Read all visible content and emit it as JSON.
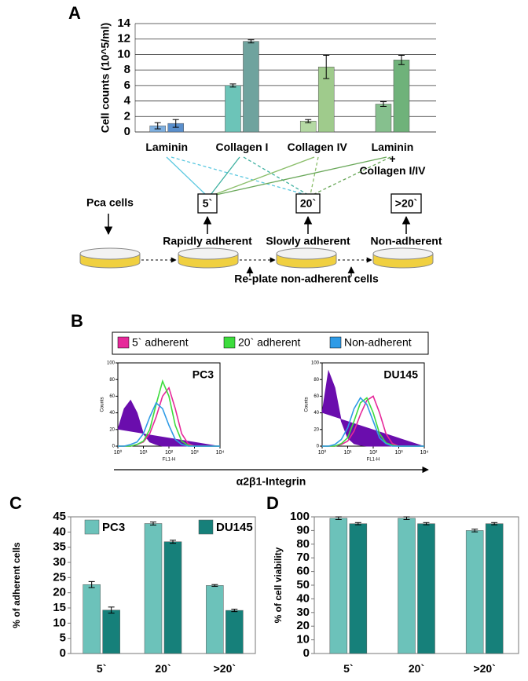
{
  "chart_data": [
    {
      "type": "bar",
      "panel": "A",
      "ylabel": "Cell counts (10^5/ml)",
      "categories": [
        "Laminin",
        "Collagen I",
        "Collagen IV",
        "Laminin\n+\nCollagen I/IV"
      ],
      "series": [
        {
          "values": [
            0.8,
            6.0,
            1.4,
            3.6
          ],
          "errors": [
            0.4,
            0.2,
            0.2,
            0.3
          ],
          "colors": [
            "#7fb0e0",
            "#6cc4b8",
            "#b5d9a4",
            "#86c08e"
          ]
        },
        {
          "values": [
            1.1,
            11.7,
            8.4,
            9.3
          ],
          "errors": [
            0.5,
            0.2,
            1.5,
            0.6
          ],
          "colors": [
            "#5a8fcc",
            "#6fa39e",
            "#9fcb8c",
            "#6fb27a"
          ]
        }
      ],
      "ylim": [
        0,
        14
      ],
      "yticks": [
        0,
        2,
        4,
        6,
        8,
        10,
        12,
        14
      ],
      "grid": true
    },
    {
      "type": "density",
      "panel": "B",
      "xlabel": "α2β1-Integrin",
      "legend": [
        {
          "name": "5` adherent",
          "color": "#e6299a"
        },
        {
          "name": "20` adherent",
          "color": "#3ddc3d"
        },
        {
          "name": "Non-adherent",
          "color": "#2f9be6"
        }
      ],
      "log_x": true,
      "x": [
        1,
        1.78,
        3.16,
        5.62,
        10,
        17.8,
        31.6,
        56.2,
        100,
        178,
        316,
        562,
        1000,
        1778,
        3162,
        5623,
        10000
      ],
      "xlim": [
        1,
        10000
      ],
      "xticks": [
        {
          "value": 1,
          "label": "10⁰"
        },
        {
          "value": 10,
          "label": "10¹"
        },
        {
          "value": 100,
          "label": "10²"
        },
        {
          "value": 1000,
          "label": "10³"
        },
        {
          "value": 10000,
          "label": "10⁴"
        }
      ],
      "ylim": [
        0,
        100
      ],
      "yticks": [
        0,
        20,
        40,
        60,
        80,
        100
      ],
      "plots": [
        {
          "title": "PC3",
          "ylabel": "Counts",
          "xlabel": "FL1-H",
          "series": [
            {
              "color": "#6a0dad",
              "fill": true,
              "values": [
                20,
                45,
                55,
                40,
                15,
                5,
                2,
                0,
                0,
                0,
                0,
                0,
                0,
                0,
                0,
                0,
                0
              ]
            },
            {
              "color": "#e6299a",
              "fill": false,
              "values": [
                0,
                0,
                0,
                2,
                5,
                15,
                35,
                60,
                70,
                45,
                15,
                3,
                0,
                0,
                0,
                0,
                0
              ]
            },
            {
              "color": "#3ddc3d",
              "fill": false,
              "values": [
                0,
                0,
                0,
                2,
                6,
                20,
                50,
                78,
                60,
                25,
                6,
                1,
                0,
                0,
                0,
                0,
                0
              ]
            },
            {
              "color": "#2f9be6",
              "fill": false,
              "values": [
                0,
                0,
                2,
                5,
                15,
                35,
                52,
                45,
                25,
                8,
                2,
                0,
                0,
                0,
                0,
                0,
                0
              ]
            }
          ]
        },
        {
          "title": "DU145",
          "ylabel": "Counts",
          "xlabel": "FL1-H",
          "series": [
            {
              "color": "#6a0dad",
              "fill": true,
              "values": [
                40,
                90,
                70,
                30,
                10,
                3,
                1,
                0,
                0,
                0,
                0,
                0,
                0,
                0,
                0,
                0,
                0
              ]
            },
            {
              "color": "#e6299a",
              "fill": false,
              "values": [
                0,
                0,
                0,
                2,
                6,
                18,
                38,
                55,
                60,
                40,
                15,
                3,
                0,
                0,
                0,
                0,
                0
              ]
            },
            {
              "color": "#3ddc3d",
              "fill": false,
              "values": [
                0,
                0,
                0,
                3,
                10,
                30,
                52,
                58,
                40,
                15,
                4,
                1,
                0,
                0,
                0,
                0,
                0
              ]
            },
            {
              "color": "#2f9be6",
              "fill": false,
              "values": [
                0,
                0,
                2,
                8,
                22,
                45,
                58,
                50,
                30,
                10,
                3,
                0,
                0,
                0,
                0,
                0,
                0
              ]
            }
          ]
        }
      ]
    },
    {
      "type": "bar",
      "panel": "C",
      "ylabel": "% of adherent cells",
      "categories": [
        "5`",
        "20`",
        ">20`"
      ],
      "series": [
        {
          "name": "PC3",
          "color": "#6cc2ba",
          "values": [
            22.7,
            42.8,
            22.4
          ],
          "errors": [
            1.0,
            0.5,
            0.3
          ]
        },
        {
          "name": "DU145",
          "color": "#16807a",
          "values": [
            14.3,
            36.8,
            14.2
          ],
          "errors": [
            1.0,
            0.5,
            0.4
          ]
        }
      ],
      "ylim": [
        0,
        45
      ],
      "yticks": [
        0,
        5,
        10,
        15,
        20,
        25,
        30,
        35,
        40,
        45
      ],
      "grid": false
    },
    {
      "type": "bar",
      "panel": "D",
      "ylabel": "% of cell viability",
      "categories": [
        "5`",
        "20`",
        ">20`"
      ],
      "series": [
        {
          "color": "#6cc2ba",
          "values": [
            99,
            99,
            90
          ],
          "errors": [
            1.0,
            1.0,
            1.0
          ]
        },
        {
          "color": "#16807a",
          "values": [
            95,
            95,
            95
          ],
          "errors": [
            0.8,
            0.8,
            0.8
          ]
        }
      ],
      "ylim": [
        0,
        100
      ],
      "yticks": [
        0,
        10,
        20,
        30,
        40,
        50,
        60,
        70,
        80,
        90,
        100
      ],
      "grid": false
    }
  ],
  "diagram": {
    "start": "Pca  cells",
    "boxes": [
      "5`",
      "20`",
      ">20`"
    ],
    "stages": [
      "Rapidly adherent",
      "Slowly adherent",
      "Non-adherent"
    ],
    "replate": "Re-plate non-adherent cells"
  }
}
